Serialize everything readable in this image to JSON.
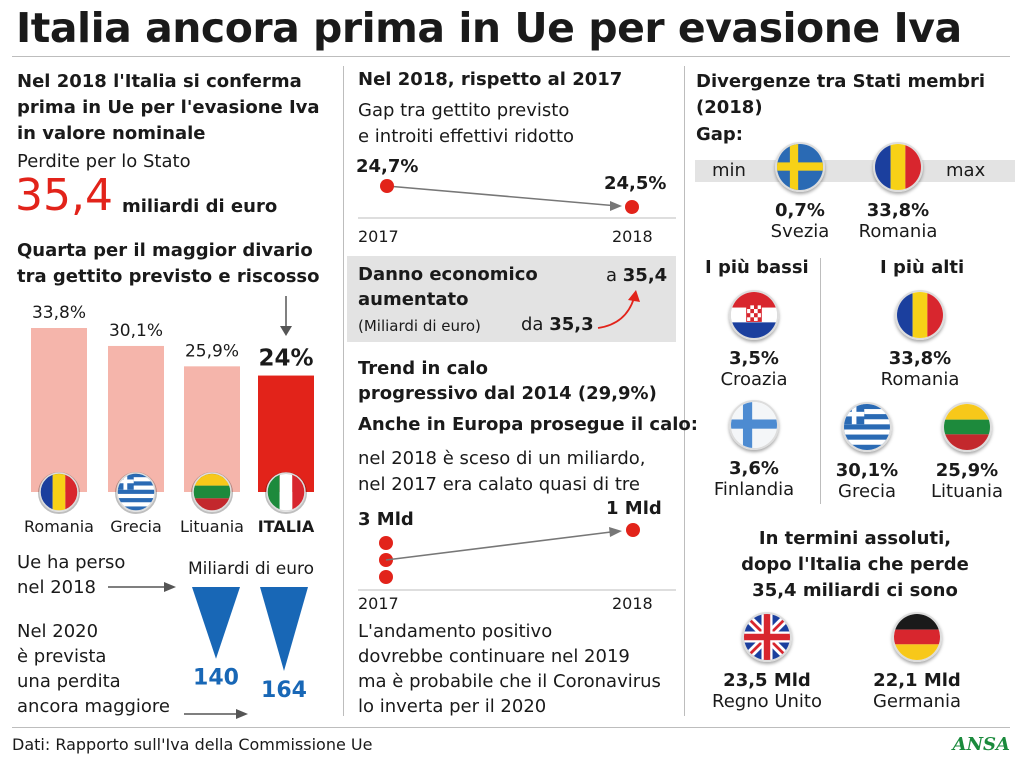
{
  "title": "Italia ancora prima in Ue per evasione Iva",
  "left": {
    "heading": "Nel 2018 l'Italia si conferma prima in Ue per l'evasione Iva in valore nominale",
    "heading_lines": [
      "Nel 2018 l'Italia si conferma",
      "prima in Ue per l'evasione Iva",
      "in valore nominale"
    ],
    "losses_label": "Perdite per lo Stato",
    "losses_value": "35,4",
    "losses_unit": "miliardi di euro",
    "rank_heading_lines": [
      "Quarta per il maggior divario",
      "tra gettito previsto e riscosso"
    ],
    "eu_lost_lines": [
      "Ue ha perso",
      "nel 2018"
    ],
    "forecast_lines": [
      "Nel 2020",
      "è prevista",
      "una perdita",
      "ancora maggiore"
    ],
    "eu_unit": "Miliardi di euro"
  },
  "chart_data": [
    {
      "type": "bar",
      "title": "Quarta per il maggior divario tra gettito previsto e riscosso",
      "categories": [
        "Romania",
        "Grecia",
        "Lituania",
        "ITALIA"
      ],
      "values": [
        33.8,
        30.1,
        25.9,
        24
      ],
      "value_labels": [
        "33,8%",
        "30,1%",
        "25,9%",
        "24%"
      ],
      "colors": [
        "#f5b5ab",
        "#f5b5ab",
        "#f5b5ab",
        "#e2231a"
      ],
      "ylim": [
        0,
        35
      ]
    },
    {
      "type": "bar",
      "title": "Miliardi di euro",
      "categories": [
        "2018",
        "2020"
      ],
      "values": [
        140,
        164
      ],
      "value_labels": [
        "140",
        "164"
      ],
      "colors": [
        "#1867b6",
        "#1867b6"
      ]
    },
    {
      "type": "line",
      "title": "Gap tra gettito previsto e introiti effettivi ridotto",
      "x": [
        "2017",
        "2018"
      ],
      "values": [
        24.7,
        24.5
      ],
      "value_labels": [
        "24,7%",
        "24,5%"
      ],
      "ylim": [
        24.4,
        24.8
      ]
    },
    {
      "type": "line",
      "title": "Anche in Europa prosegue il calo",
      "x": [
        "2017",
        "2018"
      ],
      "values": [
        3,
        1
      ],
      "value_labels": [
        "3 Mld",
        "1 Mld"
      ],
      "ylim": [
        0,
        3
      ]
    }
  ],
  "middle": {
    "heading": "Nel 2018, rispetto al 2017",
    "gap_lines": [
      "Gap tra gettito previsto",
      "e introiti effettivi ridotto"
    ],
    "x_labels": [
      "2017",
      "2018"
    ],
    "damage_lines": [
      "Danno economico",
      "aumentato"
    ],
    "damage_unit": "(Miliardi di euro)",
    "damage_from_prefix": "da",
    "damage_from": "35,3",
    "damage_to_prefix": "a",
    "damage_to": "35,4",
    "trend_lines": [
      "Trend in calo",
      "progressivo dal 2014 (29,9%)"
    ],
    "europe_heading": "Anche in Europa prosegue il calo:",
    "europe_lines": [
      "nel 2018 è sceso di un miliardo,",
      "nel 2017 era calato quasi di tre"
    ],
    "outlook_lines": [
      "L'andamento positivo",
      "dovrebbe continuare nel 2019",
      "ma è probabile che il Coronavirus",
      "lo inverta per il 2020"
    ]
  },
  "right": {
    "heading_lines": [
      "Divergenze tra Stati membri",
      "(2018)"
    ],
    "gap_label": "Gap:",
    "min_label": "min",
    "max_label": "max",
    "min_value": "0,7%",
    "min_country": "Svezia",
    "max_value": "33,8%",
    "max_country": "Romania",
    "lowest_heading": "I più bassi",
    "highest_heading": "I più alti",
    "lowest": [
      {
        "value": "3,5%",
        "country": "Croazia"
      },
      {
        "value": "3,6%",
        "country": "Finlandia"
      }
    ],
    "highest": [
      {
        "value": "33,8%",
        "country": "Romania"
      },
      {
        "value": "30,1%",
        "country": "Grecia"
      },
      {
        "value": "25,9%",
        "country": "Lituania"
      }
    ],
    "absolute_lines": [
      "In termini assoluti,",
      "dopo l'Italia che perde",
      "35,4 miliardi ci sono"
    ],
    "absolute": [
      {
        "value": "23,5 Mld",
        "country": "Regno Unito"
      },
      {
        "value": "22,1 Mld",
        "country": "Germania"
      }
    ]
  },
  "footer": {
    "source": "Dati: Rapporto sull'Iva della Commissione Ue",
    "brand": "ANSA"
  },
  "icons": [
    "flag-romania-icon",
    "flag-greece-icon",
    "flag-lithuania-icon",
    "flag-italy-icon",
    "flag-sweden-icon",
    "flag-croatia-icon",
    "flag-finland-icon",
    "flag-uk-icon",
    "flag-germany-icon",
    "arrow-right-icon",
    "arrow-down-icon"
  ]
}
